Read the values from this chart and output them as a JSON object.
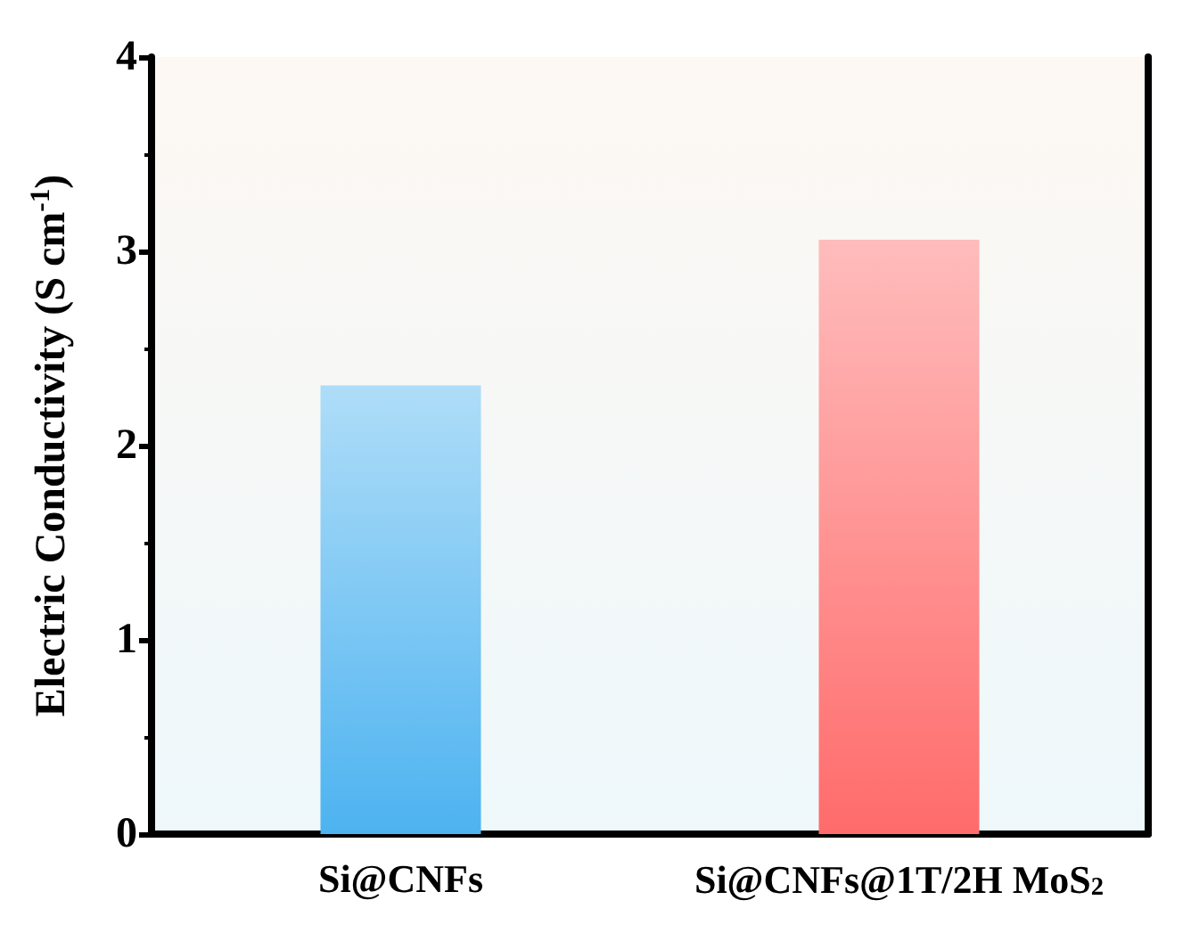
{
  "chart_data": {
    "type": "bar",
    "ylabel": "Electric Conductivity (S cm$^{-1}$)",
    "categories": [
      "Si@CNFs",
      "Si@CNFs@1T/2H MoS$_{2}$"
    ],
    "values": [
      2.31,
      3.06
    ],
    "colors": [
      "#4db3f0",
      "#ff6b6b"
    ],
    "ylim": [
      0,
      4
    ],
    "yticks": [
      0,
      1,
      2,
      3,
      4
    ],
    "grid": false
  }
}
